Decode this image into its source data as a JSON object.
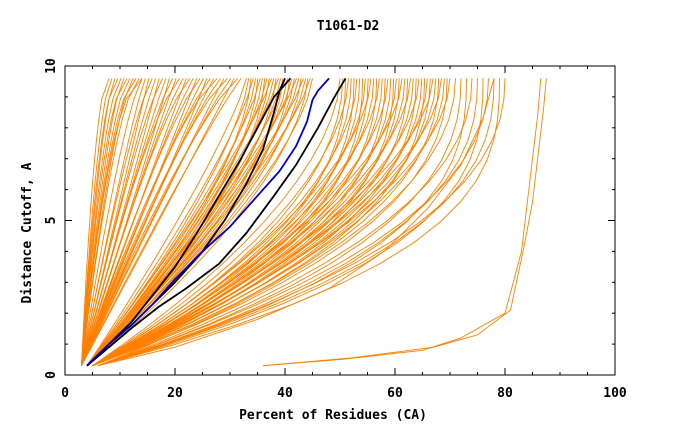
{
  "chart_data": {
    "type": "line",
    "title": "T1061-D2",
    "xlabel": "Percent of Residues (CA)",
    "ylabel": "Distance Cutoff, A",
    "xlim": [
      0,
      100
    ],
    "ylim": [
      0,
      10
    ],
    "x_ticks": [
      0,
      20,
      40,
      60,
      80,
      100
    ],
    "y_ticks": [
      0,
      5,
      10
    ],
    "grid": false,
    "legend": "none",
    "colors": {
      "ensemble": "#ff8000",
      "highlight_black": "#000000",
      "highlight_blue": "#0000cc"
    },
    "ensemble_bands": [
      {
        "name": "",
        "count": 12,
        "start": [
          3,
          0.3
        ],
        "end": [
          [
            8,
            9.6
          ],
          [
            14,
            9.6
          ]
        ],
        "curvature": 0.6
      },
      {
        "name": "",
        "count": 30,
        "start": [
          3,
          0.3
        ],
        "end": [
          [
            14,
            9.6
          ],
          [
            32,
            9.6
          ]
        ],
        "curvature": 0.9
      },
      {
        "name": "",
        "count": 30,
        "start": [
          4,
          0.3
        ],
        "end": [
          [
            33,
            9.6
          ],
          [
            45,
            9.6
          ]
        ],
        "curvature": 1.4
      },
      {
        "name": "",
        "count": 40,
        "start": [
          5,
          0.3
        ],
        "end": [
          [
            50,
            9.6
          ],
          [
            70,
            9.6
          ]
        ],
        "curvature": 2.0
      },
      {
        "name": "",
        "count": 10,
        "start": [
          6,
          0.3
        ],
        "end": [
          [
            71,
            9.6
          ],
          [
            80,
            9.6
          ]
        ],
        "curvature": 2.4
      }
    ],
    "outlier_series": [
      {
        "name": "",
        "x": [
          36,
          50,
          65,
          72,
          80,
          83,
          84,
          85,
          86,
          86.5
        ],
        "y": [
          0.3,
          0.5,
          0.8,
          1.2,
          2,
          4,
          5.5,
          7,
          8.5,
          9.6
        ]
      },
      {
        "name": "",
        "x": [
          36,
          52,
          67,
          75,
          81,
          83.5,
          85,
          86,
          87,
          87.5
        ],
        "y": [
          0.3,
          0.55,
          0.9,
          1.3,
          2.1,
          4.2,
          5.6,
          7.1,
          8.6,
          9.6
        ]
      },
      {
        "name": "",
        "x": [
          6,
          20,
          35,
          48,
          58,
          66,
          72,
          76,
          78
        ],
        "y": [
          0.3,
          0.9,
          1.8,
          2.8,
          4.0,
          5.4,
          6.8,
          8.3,
          9.6
        ]
      }
    ],
    "series": [
      {
        "name": "",
        "color": "#000000",
        "x": [
          4,
          8,
          12,
          16,
          20,
          24,
          28,
          32,
          35,
          38,
          40,
          41
        ],
        "y": [
          0.3,
          1.0,
          1.7,
          2.6,
          3.5,
          4.6,
          5.8,
          7.0,
          8.0,
          9.0,
          9.4,
          9.6
        ]
      },
      {
        "name": "",
        "color": "#000000",
        "x": [
          4,
          8,
          12,
          16,
          20,
          25,
          29,
          33,
          36,
          38,
          39,
          40
        ],
        "y": [
          0.3,
          1.0,
          1.6,
          2.3,
          3.0,
          4.0,
          5.0,
          6.2,
          7.3,
          8.5,
          9.2,
          9.6
        ]
      },
      {
        "name": "",
        "color": "#000000",
        "x": [
          4,
          8,
          12,
          17,
          22,
          28,
          33,
          38,
          42,
          46,
          49,
          51
        ],
        "y": [
          0.3,
          0.9,
          1.5,
          2.2,
          2.8,
          3.6,
          4.6,
          5.8,
          6.8,
          8.0,
          9.0,
          9.6
        ]
      },
      {
        "name": "",
        "color": "#0000cc",
        "x": [
          4,
          8,
          12,
          16,
          20,
          25,
          30,
          35,
          39,
          42,
          44,
          45,
          46,
          48
        ],
        "y": [
          0.3,
          1.0,
          1.6,
          2.3,
          3.1,
          4.0,
          4.8,
          5.8,
          6.6,
          7.4,
          8.2,
          8.9,
          9.2,
          9.6
        ]
      }
    ]
  }
}
